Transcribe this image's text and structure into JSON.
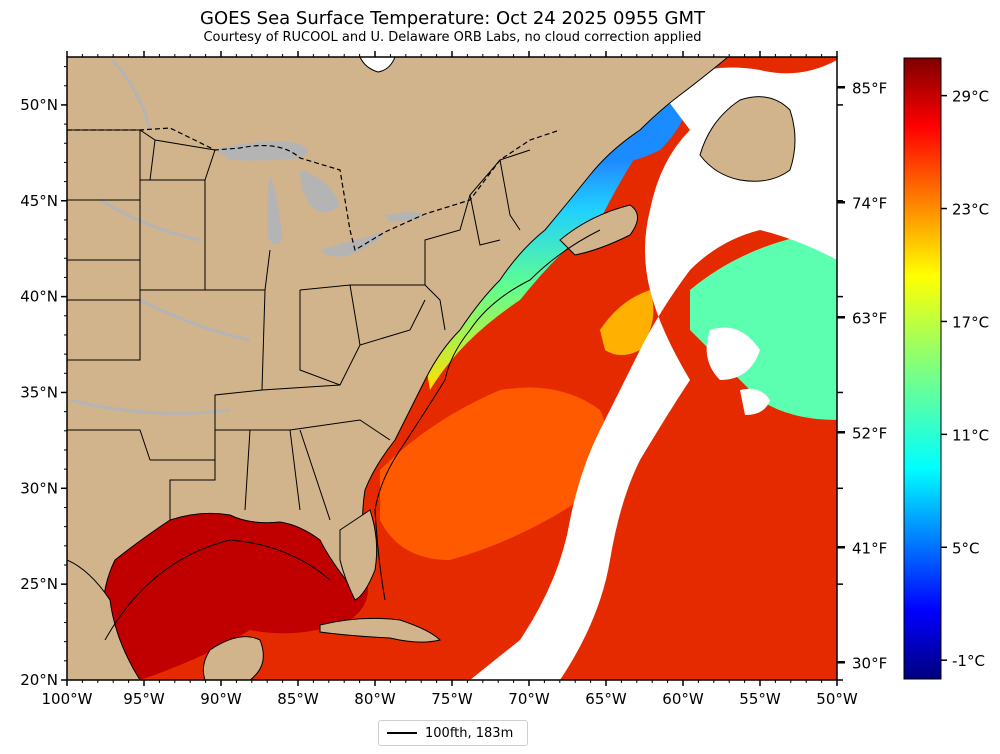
{
  "title": "GOES Sea Surface Temperature: Oct 24 2025 0955 GMT",
  "subtitle": "Courtesy of RUCOOL and U. Delaware ORB Labs, no cloud correction applied",
  "map": {
    "extent": {
      "lon_min": -100,
      "lon_max": -50,
      "lat_min": 20,
      "lat_max": 52.5
    },
    "land_color": "#d2b48c",
    "lake_color": "#b4b4b4",
    "cloud_color": "#ffffff",
    "lon_ticks": [
      "100°W",
      "95°W",
      "90°W",
      "85°W",
      "80°W",
      "75°W",
      "70°W",
      "65°W",
      "60°W",
      "55°W",
      "50°W"
    ],
    "lat_ticks": [
      "20°N",
      "25°N",
      "30°N",
      "35°N",
      "40°N",
      "45°N",
      "50°N"
    ]
  },
  "colorbar": {
    "colormap": "jet",
    "celsius_labels": [
      "-1°C",
      "5°C",
      "11°C",
      "17°C",
      "23°C",
      "29°C"
    ],
    "fahrenheit_labels": [
      "30°F",
      "41°F",
      "52°F",
      "63°F",
      "74°F",
      "85°F"
    ]
  },
  "legend": {
    "label": "100fth, 183m"
  }
}
